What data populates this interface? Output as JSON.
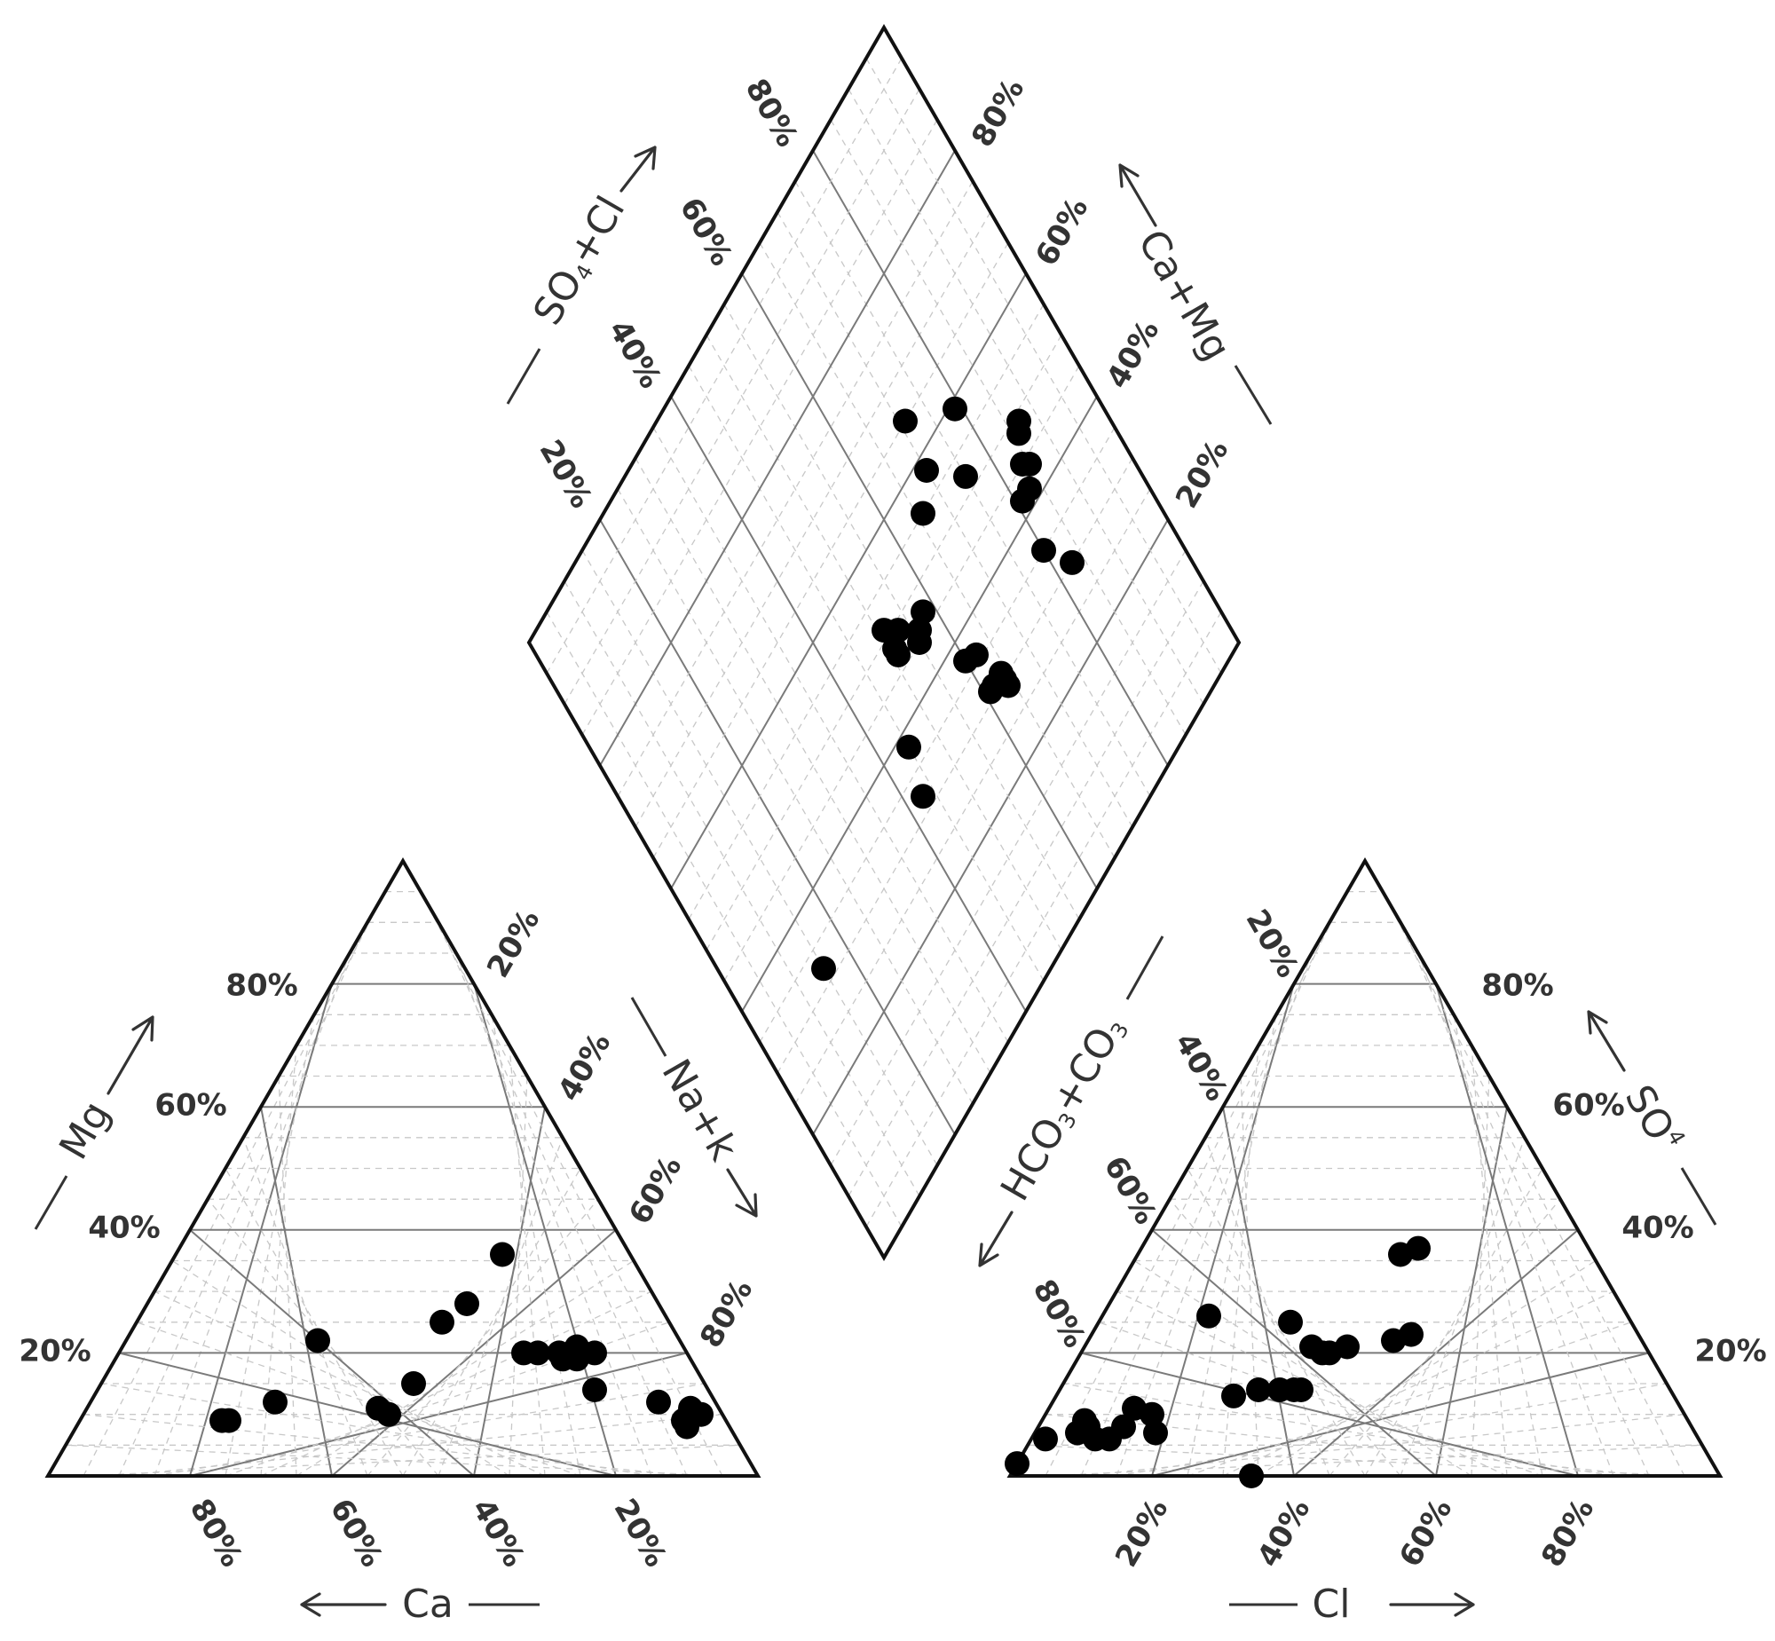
{
  "chart_data": {
    "type": "scatter",
    "subtype": "piper-trilinear",
    "title": "",
    "grid": true,
    "tick_labels": [
      "20%",
      "40%",
      "60%",
      "80%"
    ],
    "cation_triangle": {
      "axes": {
        "mg": "Mg",
        "ca": "Ca",
        "na_k": "Na+k"
      },
      "points_pct_mg_na_k": [
        [
          9,
          21
        ],
        [
          9,
          20
        ],
        [
          12,
          26
        ],
        [
          22,
          27
        ],
        [
          28,
          45
        ],
        [
          25,
          43
        ],
        [
          15,
          44
        ],
        [
          11,
          41
        ],
        [
          10,
          43
        ],
        [
          36,
          46
        ],
        [
          20,
          57
        ],
        [
          20,
          59
        ],
        [
          20,
          62
        ],
        [
          19,
          63
        ],
        [
          21,
          64
        ],
        [
          19,
          65
        ],
        [
          20,
          67
        ],
        [
          14,
          70
        ],
        [
          12,
          80
        ],
        [
          11,
          85
        ],
        [
          9,
          85
        ],
        [
          10,
          87
        ],
        [
          8,
          86
        ]
      ]
    },
    "anion_triangle": {
      "axes": {
        "so4": "SO4",
        "hco3_co3": "HCO3+CO3",
        "cl": "Cl"
      },
      "points_pct_so4_cl": [
        [
          2,
          0
        ],
        [
          6,
          2
        ],
        [
          6,
          9
        ],
        [
          6,
          11
        ],
        [
          8,
          12
        ],
        [
          11,
          12
        ],
        [
          10,
          15
        ],
        [
          7,
          17
        ],
        [
          8,
          7
        ],
        [
          7,
          6
        ],
        [
          9,
          6
        ],
        [
          26,
          15
        ],
        [
          25,
          27
        ],
        [
          13,
          25
        ],
        [
          14,
          28
        ],
        [
          14,
          31
        ],
        [
          20,
          34
        ],
        [
          20,
          35
        ],
        [
          21,
          37
        ],
        [
          21,
          32
        ],
        [
          14,
          34
        ],
        [
          14,
          33
        ],
        [
          0,
          34
        ],
        [
          22,
          43
        ],
        [
          23,
          45
        ],
        [
          37,
          39
        ],
        [
          36,
          37
        ]
      ]
    },
    "diamond": {
      "axes": {
        "so4_cl": "SO4+Cl",
        "ca_mg": "Ca+Mg"
      },
      "points_pct_so4cl_camg": [
        [
          32,
          15
        ],
        [
          32,
          43
        ],
        [
          38,
          45
        ],
        [
          45,
          55
        ],
        [
          47,
          58
        ],
        [
          55,
          66
        ],
        [
          58,
          70
        ],
        [
          65,
          71
        ],
        [
          52,
          75
        ],
        [
          59,
          79
        ],
        [
          51,
          51
        ],
        [
          49,
          53
        ],
        [
          46,
          56
        ],
        [
          47,
          51
        ],
        [
          48,
          51
        ],
        [
          31,
          64
        ],
        [
          29,
          64
        ],
        [
          30,
          64
        ],
        [
          31,
          61
        ],
        [
          31,
          62
        ],
        [
          37,
          60
        ],
        [
          36,
          62
        ],
        [
          44,
          85
        ],
        [
          48,
          86
        ],
        [
          49,
          87
        ],
        [
          42,
          81
        ],
        [
          42,
          83
        ],
        [
          45,
          84
        ],
        [
          30,
          83
        ],
        [
          35,
          80
        ]
      ]
    }
  }
}
